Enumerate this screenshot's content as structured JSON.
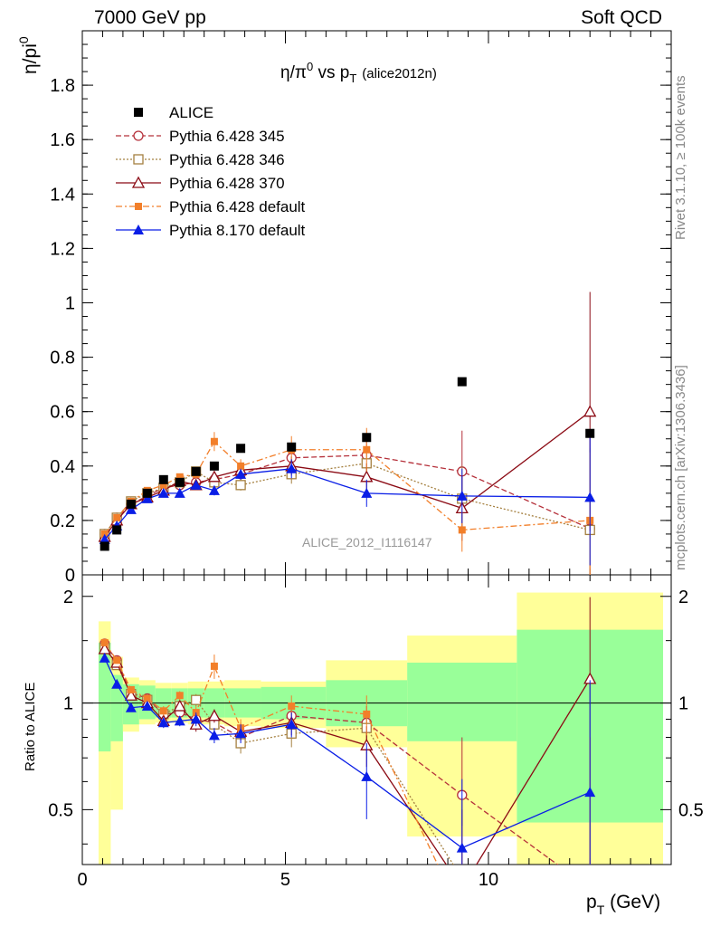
{
  "header": {
    "left": "7000 GeV pp",
    "right": "Soft QCD",
    "rivet": "Rivet 3.1.10, ≥ 100k events",
    "mcplots": "mcplots.cern.ch [arXiv:1306.3436]"
  },
  "chart_data": {
    "type": "scatter",
    "title_main": "η/π",
    "title_sup": "0",
    "title_mid": " vs p",
    "title_sub": "T",
    "title_tag": "(alice2012n)",
    "ylabel_main": "η/pi",
    "ylabel_sup": "0",
    "ratio_ylabel": "Ratio to ALICE",
    "xlabel_main": "p",
    "xlabel_sub": "T",
    "xlabel_unit": " (GeV)",
    "analysis_id": "ALICE_2012_I1116147",
    "xlim": [
      0,
      14.5
    ],
    "ylim": [
      0,
      2.0
    ],
    "ratio_ylim": [
      0.35,
      2.3
    ],
    "x_ticks": [
      0,
      5,
      10
    ],
    "y_ticks": [
      0,
      0.2,
      0.4,
      0.6,
      0.8,
      1,
      1.2,
      1.4,
      1.6,
      1.8
    ],
    "ratio_y_ticks": [
      0.5,
      1,
      2
    ],
    "data": {
      "name": "ALICE",
      "color": "#000000",
      "x": [
        0.55,
        0.85,
        1.2,
        1.6,
        2.0,
        2.4,
        2.8,
        3.25,
        3.9,
        5.15,
        7.0,
        9.35,
        12.5
      ],
      "y": [
        0.105,
        0.165,
        0.26,
        0.3,
        0.35,
        0.34,
        0.38,
        0.4,
        0.465,
        0.47,
        0.505,
        0.71,
        0.52
      ]
    },
    "mc_uncertainty_bands": [
      {
        "x": [
          0.4,
          0.7
        ],
        "green": [
          0.73,
          1.48
        ],
        "yellow": [
          0.27,
          1.7
        ]
      },
      {
        "x": [
          0.7,
          1.0
        ],
        "green": [
          0.78,
          1.2
        ],
        "yellow": [
          0.5,
          1.35
        ]
      },
      {
        "x": [
          1.0,
          1.4
        ],
        "green": [
          0.87,
          1.13
        ],
        "yellow": [
          0.83,
          1.18
        ]
      },
      {
        "x": [
          1.4,
          1.8
        ],
        "green": [
          0.9,
          1.12
        ],
        "yellow": [
          0.87,
          1.16
        ]
      },
      {
        "x": [
          1.8,
          2.2
        ],
        "green": [
          0.91,
          1.1
        ],
        "yellow": [
          0.88,
          1.14
        ]
      },
      {
        "x": [
          2.2,
          2.6
        ],
        "green": [
          0.91,
          1.1
        ],
        "yellow": [
          0.88,
          1.14
        ]
      },
      {
        "x": [
          2.6,
          3.0
        ],
        "green": [
          0.91,
          1.1
        ],
        "yellow": [
          0.87,
          1.15
        ]
      },
      {
        "x": [
          3.0,
          3.5
        ],
        "green": [
          0.91,
          1.1
        ],
        "yellow": [
          0.87,
          1.15
        ]
      },
      {
        "x": [
          3.5,
          4.4
        ],
        "green": [
          0.91,
          1.1
        ],
        "yellow": [
          0.86,
          1.16
        ]
      },
      {
        "x": [
          4.4,
          6.0
        ],
        "green": [
          0.9,
          1.11
        ],
        "yellow": [
          0.85,
          1.15
        ]
      },
      {
        "x": [
          6.0,
          8.0
        ],
        "green": [
          0.86,
          1.16
        ],
        "yellow": [
          0.75,
          1.32
        ]
      },
      {
        "x": [
          8.0,
          10.7
        ],
        "green": [
          0.78,
          1.3
        ],
        "yellow": [
          0.42,
          1.55
        ]
      },
      {
        "x": [
          10.7,
          14.3
        ],
        "green": [
          0.46,
          1.61
        ],
        "yellow": [
          0.35,
          2.05
        ]
      }
    ],
    "series": [
      {
        "name": "Pythia 6.428 345",
        "color": "#b5303a",
        "dash": "6,3",
        "marker": "circle-open",
        "x": [
          0.55,
          0.85,
          1.2,
          1.6,
          2.0,
          2.4,
          2.8,
          3.25,
          3.9,
          5.15,
          7.0,
          9.35,
          12.5
        ],
        "y": [
          0.15,
          0.21,
          0.26,
          0.29,
          0.32,
          0.33,
          0.34,
          0.35,
          0.37,
          0.43,
          0.44,
          0.38,
          0.17
        ],
        "err": [
          0.005,
          0.006,
          0.007,
          0.008,
          0.01,
          0.012,
          0.015,
          0.018,
          0.02,
          0.035,
          0.05,
          0.15,
          0.35
        ],
        "ratio": [
          1.47,
          1.32,
          1.07,
          1.03,
          0.93,
          0.94,
          0.9,
          0.88,
          0.8,
          0.92,
          0.88,
          0.55,
          0.3
        ],
        "ratio_err": [
          0.02,
          0.02,
          0.02,
          0.02,
          0.03,
          0.03,
          0.04,
          0.04,
          0.05,
          0.07,
          0.1,
          0.25,
          0.5
        ]
      },
      {
        "name": "Pythia 6.428 346",
        "color": "#a58040",
        "dash": "2,2",
        "marker": "square-open",
        "x": [
          0.55,
          0.85,
          1.2,
          1.6,
          2.0,
          2.4,
          2.8,
          3.25,
          3.9,
          5.15,
          7.0,
          9.35,
          12.5
        ],
        "y": [
          0.15,
          0.21,
          0.27,
          0.3,
          0.32,
          0.34,
          0.38,
          0.34,
          0.33,
          0.37,
          0.41,
          0.28,
          0.165
        ],
        "err": [
          0.005,
          0.006,
          0.007,
          0.008,
          0.01,
          0.012,
          0.015,
          0.018,
          0.02,
          0.035,
          0.05,
          0.12,
          0.3
        ],
        "ratio": [
          1.43,
          1.28,
          1.06,
          1.02,
          0.93,
          0.98,
          1.02,
          0.87,
          0.77,
          0.82,
          0.85,
          0.32,
          0.3
        ],
        "ratio_err": [
          0.02,
          0.02,
          0.02,
          0.02,
          0.03,
          0.03,
          0.04,
          0.04,
          0.05,
          0.07,
          0.1,
          0.22,
          0.5
        ]
      },
      {
        "name": "Pythia 6.428 370",
        "color": "#8b0a14",
        "dash": "",
        "marker": "triangle-open",
        "x": [
          0.55,
          0.85,
          1.2,
          1.6,
          2.0,
          2.4,
          2.8,
          3.25,
          3.9,
          5.15,
          7.0,
          9.35,
          12.5
        ],
        "y": [
          0.14,
          0.2,
          0.26,
          0.285,
          0.31,
          0.345,
          0.33,
          0.36,
          0.385,
          0.4,
          0.36,
          0.245,
          0.6
        ],
        "err": [
          0.005,
          0.006,
          0.007,
          0.008,
          0.01,
          0.012,
          0.015,
          0.018,
          0.02,
          0.035,
          0.05,
          0.12,
          0.44
        ],
        "ratio": [
          1.42,
          1.3,
          1.05,
          1.0,
          0.89,
          0.98,
          0.87,
          0.92,
          0.83,
          0.88,
          0.76,
          0.3,
          1.17
        ],
        "ratio_err": [
          0.02,
          0.02,
          0.02,
          0.02,
          0.03,
          0.03,
          0.04,
          0.04,
          0.05,
          0.07,
          0.1,
          0.2,
          0.82
        ]
      },
      {
        "name": "Pythia 6.428 default",
        "color": "#f27f2a",
        "dash": "7,3,2,3",
        "marker": "square-filled",
        "x": [
          0.55,
          0.85,
          1.2,
          1.6,
          2.0,
          2.4,
          2.8,
          3.25,
          3.9,
          5.15,
          7.0,
          9.35,
          12.5
        ],
        "y": [
          0.15,
          0.21,
          0.27,
          0.31,
          0.33,
          0.36,
          0.37,
          0.49,
          0.4,
          0.46,
          0.46,
          0.165,
          0.2
        ],
        "err": [
          0.005,
          0.006,
          0.007,
          0.008,
          0.01,
          0.012,
          0.015,
          0.035,
          0.025,
          0.05,
          0.08,
          0.08,
          0.25
        ],
        "ratio": [
          1.48,
          1.32,
          1.09,
          1.03,
          0.95,
          1.05,
          0.94,
          1.27,
          0.85,
          0.98,
          0.93,
          0.25,
          0.3
        ],
        "ratio_err": [
          0.02,
          0.02,
          0.02,
          0.02,
          0.03,
          0.03,
          0.04,
          0.1,
          0.05,
          0.07,
          0.12,
          0.2,
          0.5
        ]
      },
      {
        "name": "Pythia 8.170 default",
        "color": "#0a1ee6",
        "dash": "",
        "marker": "triangle-filled",
        "x": [
          0.55,
          0.85,
          1.2,
          1.6,
          2.0,
          2.4,
          2.8,
          3.25,
          3.9,
          5.15,
          7.0,
          9.35,
          12.5
        ],
        "y": [
          0.13,
          0.18,
          0.24,
          0.28,
          0.3,
          0.3,
          0.33,
          0.31,
          0.37,
          0.39,
          0.3,
          0.29,
          0.285
        ],
        "err": [
          0.005,
          0.006,
          0.007,
          0.008,
          0.01,
          0.012,
          0.015,
          0.018,
          0.02,
          0.035,
          0.05,
          0.1,
          0.25
        ],
        "ratio": [
          1.34,
          1.13,
          0.97,
          0.98,
          0.88,
          0.89,
          0.9,
          0.81,
          0.82,
          0.87,
          0.62,
          0.39,
          0.56
        ],
        "ratio_err": [
          0.02,
          0.02,
          0.02,
          0.02,
          0.03,
          0.03,
          0.04,
          0.04,
          0.05,
          0.07,
          0.15,
          0.22,
          0.6
        ]
      }
    ]
  }
}
